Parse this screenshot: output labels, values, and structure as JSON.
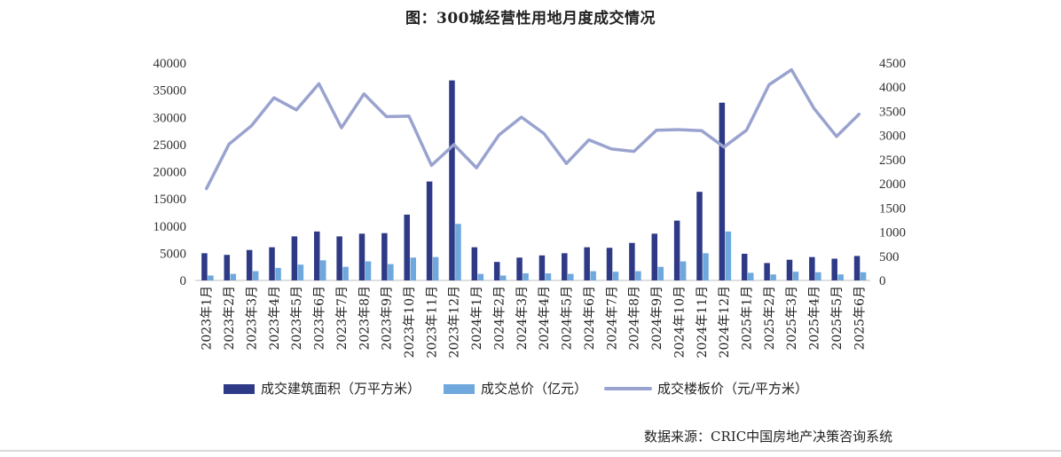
{
  "title": "图：300城经营性用地月度成交情况",
  "source": "数据来源：CRIC中国房地产决策咨询系统",
  "colors": {
    "area": "#2e3a86",
    "total": "#6fa8dc",
    "price": "#9aa3cf"
  },
  "chart_data": {
    "type": "bar",
    "categories": [
      "2023年1月",
      "2023年2月",
      "2023年3月",
      "2023年4月",
      "2023年5月",
      "2023年6月",
      "2023年7月",
      "2023年8月",
      "2023年9月",
      "2023年10月",
      "2023年11月",
      "2023年12月",
      "2024年1月",
      "2024年2月",
      "2024年3月",
      "2024年4月",
      "2024年5月",
      "2024年6月",
      "2024年7月",
      "2024年8月",
      "2024年9月",
      "2024年10月",
      "2024年11月",
      "2024年12月",
      "2025年1月",
      "2025年2月",
      "2025年3月",
      "2025年4月",
      "2025年5月",
      "2025年6月"
    ],
    "series": [
      {
        "name": "成交建筑面积（万平方米）",
        "type": "bar",
        "axis": "left",
        "values": [
          5000,
          4700,
          5600,
          6100,
          8100,
          9000,
          8100,
          8600,
          8700,
          12100,
          18200,
          36800,
          6100,
          3400,
          4200,
          4600,
          5000,
          6100,
          6000,
          6900,
          8600,
          11000,
          16300,
          32700,
          4900,
          3200,
          3800,
          4300,
          4000,
          4500
        ]
      },
      {
        "name": "成交总价（亿元）",
        "type": "bar",
        "axis": "left",
        "values": [
          900,
          1200,
          1700,
          2300,
          2900,
          3700,
          2500,
          3500,
          3000,
          4200,
          4300,
          10400,
          1200,
          900,
          1300,
          1300,
          1200,
          1700,
          1600,
          1700,
          2500,
          3500,
          5000,
          9000,
          1400,
          1100,
          1600,
          1500,
          1100,
          1500
        ]
      },
      {
        "name": "成交楼板价（元/平方米）",
        "type": "line",
        "axis": "right",
        "values": [
          1900,
          2820,
          3200,
          3780,
          3530,
          4070,
          3160,
          3860,
          3390,
          3400,
          2380,
          2810,
          2330,
          3010,
          3380,
          3040,
          2420,
          2910,
          2720,
          2670,
          3110,
          3120,
          3100,
          2760,
          3110,
          4050,
          4360,
          3560,
          2980,
          3440
        ]
      }
    ],
    "y_left": {
      "min": 0,
      "max": 40000,
      "ticks": [
        0,
        5000,
        10000,
        15000,
        20000,
        25000,
        30000,
        35000,
        40000
      ]
    },
    "y_right": {
      "min": 0,
      "max": 4500,
      "ticks": [
        0,
        500,
        1000,
        1500,
        2000,
        2500,
        3000,
        3500,
        4000,
        4500
      ]
    },
    "grid": false,
    "legend": "bottom"
  }
}
